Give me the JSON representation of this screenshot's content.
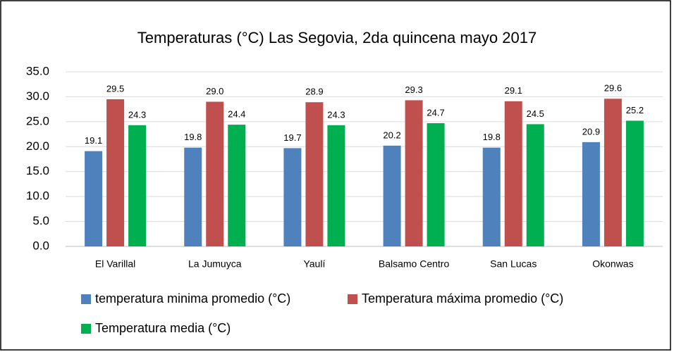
{
  "chart_data": {
    "type": "bar",
    "title": "Temperaturas (°C) Las Segovia, 2da quincena mayo 2017",
    "categories": [
      "El Varillal",
      "La Jumuyca",
      "Yaulí",
      "Balsamo Centro",
      "San Lucas",
      "Okonwas"
    ],
    "series": [
      {
        "name": "temperatura minima promedio (°C)",
        "color": "#4f81bd",
        "values": [
          19.1,
          19.8,
          19.7,
          20.2,
          19.8,
          20.9
        ],
        "value_labels": [
          "19.1",
          "19.8",
          "19.7",
          "20.2",
          "19.8",
          "20.9"
        ]
      },
      {
        "name": "Temperatura máxima promedio (°C)",
        "color": "#c0504d",
        "values": [
          29.5,
          29.0,
          28.9,
          29.3,
          29.1,
          29.6
        ],
        "value_labels": [
          "29.5",
          "29.0",
          "28.9",
          "29.3",
          "29.1",
          "29.6"
        ]
      },
      {
        "name": "Temperatura media (°C)",
        "color": "#00b050",
        "values": [
          24.3,
          24.4,
          24.3,
          24.7,
          24.5,
          25.2
        ],
        "value_labels": [
          "24.3",
          "24.4",
          "24.3",
          "24.7",
          "24.5",
          "25.2"
        ]
      }
    ],
    "ylim": [
      0,
      35
    ],
    "yticks": [
      {
        "value": 0,
        "label": "0.0"
      },
      {
        "value": 5,
        "label": "5.0"
      },
      {
        "value": 10,
        "label": "10.0"
      },
      {
        "value": 15,
        "label": "15.0"
      },
      {
        "value": 20,
        "label": "20.0"
      },
      {
        "value": 25,
        "label": "25.0"
      },
      {
        "value": 30,
        "label": "30.0"
      },
      {
        "value": 35,
        "label": "35.0"
      }
    ],
    "grid": true
  }
}
